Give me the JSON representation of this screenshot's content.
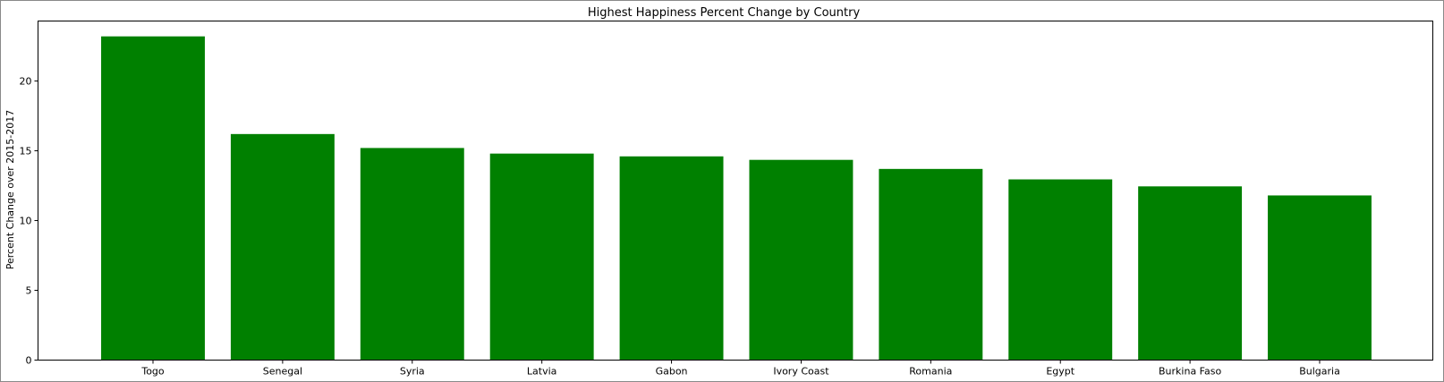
{
  "chart_data": {
    "type": "bar",
    "title": "Highest Happiness Percent Change by Country",
    "xlabel": "",
    "ylabel": "Percent Change over 2015-2017",
    "categories": [
      "Togo",
      "Senegal",
      "Syria",
      "Latvia",
      "Gabon",
      "Ivory Coast",
      "Romania",
      "Egypt",
      "Burkina Faso",
      "Bulgaria"
    ],
    "values": [
      23.2,
      16.2,
      15.2,
      14.8,
      14.6,
      14.35,
      13.7,
      12.95,
      12.45,
      11.8
    ],
    "ylim": [
      0,
      24.3
    ],
    "yticks": [
      0,
      5,
      10,
      15,
      20
    ],
    "bar_color": "#008000",
    "grid": false
  }
}
